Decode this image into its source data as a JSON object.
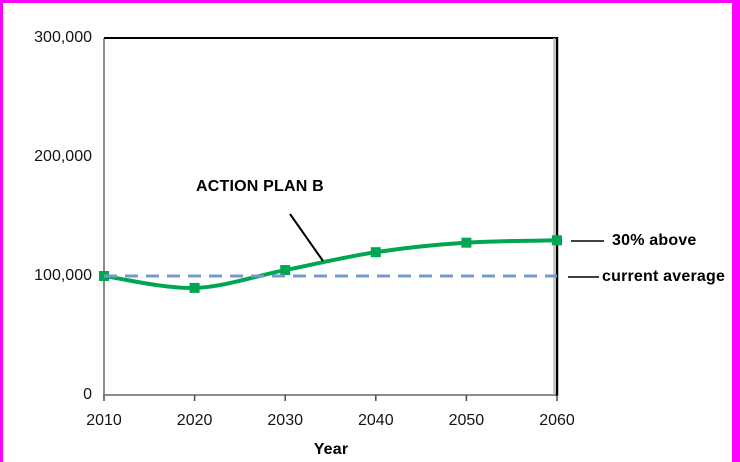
{
  "window": {
    "border_color": "#FF00FF",
    "background": "#FFFFFF"
  },
  "chart_data": {
    "type": "line",
    "x": [
      2010,
      2020,
      2030,
      2040,
      2050,
      2060
    ],
    "xlabel": "Year",
    "ylabel": "",
    "ylim": [
      0,
      300000
    ],
    "xlim": [
      2010,
      2060
    ],
    "grid": false,
    "legend": "none",
    "yticks": [
      {
        "value": 0,
        "label": "0"
      },
      {
        "value": 100000,
        "label": "100,000"
      },
      {
        "value": 200000,
        "label": "200,000"
      },
      {
        "value": 300000,
        "label": "300,000"
      }
    ],
    "xticks": [
      {
        "value": 2010,
        "label": "2010"
      },
      {
        "value": 2020,
        "label": "2020"
      },
      {
        "value": 2030,
        "label": "2030"
      },
      {
        "value": 2040,
        "label": "2040"
      },
      {
        "value": 2050,
        "label": "2050"
      },
      {
        "value": 2060,
        "label": "2060"
      }
    ],
    "series": [
      {
        "name": "ACTION PLAN B",
        "values": [
          100000,
          90000,
          105000,
          120000,
          128000,
          130000
        ],
        "color": "#00A651",
        "marker": "square",
        "line_style": "solid",
        "smooth": true
      }
    ],
    "reference_line": {
      "label": "current average",
      "value": 100000,
      "color": "#7499CC",
      "style": "dashed"
    },
    "annotations": [
      {
        "text": "ACTION PLAN B",
        "bold": true,
        "points_to": "series curve near 2033"
      },
      {
        "text": "30% above",
        "bold": true,
        "points_to_value": 130000
      },
      {
        "text": "current average",
        "bold": true,
        "points_to_value": 100000
      }
    ],
    "colors": {
      "series_green": "#00A651",
      "dashed_blue": "#7499CC",
      "axis_gray": "#8C8C8C",
      "axis_black": "#000000",
      "text": "#141414"
    }
  }
}
